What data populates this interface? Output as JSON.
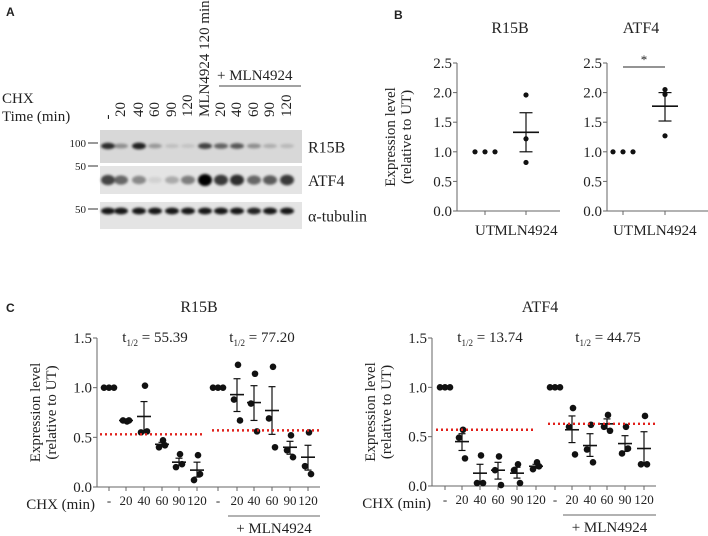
{
  "panel_letters": {
    "a": "A",
    "b": "B",
    "c": "C"
  },
  "panel_a": {
    "row_label_1": "CHX",
    "row_label_2": "Time (min)",
    "lanes": [
      "-",
      "20",
      "40",
      "60",
      "90",
      "120",
      "MLN4924 120 min",
      "20",
      "40",
      "60",
      "90",
      "120"
    ],
    "group_label": "+ MLN4924",
    "blots": [
      {
        "name": "R15B",
        "mw": "100",
        "intensity": [
          0.8,
          0.35,
          0.85,
          0.3,
          0.12,
          0.1,
          0.7,
          0.55,
          0.6,
          0.35,
          0.2,
          0.15
        ]
      },
      {
        "name": "ATF4",
        "mw": "50",
        "intensity": [
          0.7,
          0.55,
          0.4,
          0.08,
          0.25,
          0.45,
          1.0,
          0.75,
          0.8,
          0.55,
          0.6,
          0.75
        ]
      },
      {
        "name": "α-tubulin",
        "mw": "50",
        "intensity": [
          0.9,
          0.9,
          0.9,
          0.9,
          0.9,
          0.9,
          0.9,
          0.9,
          0.9,
          0.85,
          0.9,
          0.9
        ]
      }
    ]
  },
  "chart_data": [
    {
      "id": "B-R15B",
      "type": "scatter",
      "title": "R15B",
      "ylabel": "Expression level (relative to UT)",
      "ylim": [
        0,
        2.5
      ],
      "yticks": [
        "0.0",
        "0.5",
        "1.0",
        "1.5",
        "2.0",
        "2.5"
      ],
      "categories": [
        "UT",
        "MLN4924"
      ],
      "points": [
        [
          1,
          1,
          1
        ],
        [
          1.96,
          1.22,
          0.82
        ]
      ],
      "mean": [
        1.0,
        1.33
      ],
      "sem_low": [
        1.0,
        1.0
      ],
      "sem_high": [
        1.0,
        1.66
      ]
    },
    {
      "id": "B-ATF4",
      "type": "scatter",
      "title": "ATF4",
      "ylim": [
        0,
        2.5
      ],
      "yticks": [
        "0.0",
        "0.5",
        "1.0",
        "1.5",
        "2.0",
        "2.5"
      ],
      "categories": [
        "UT",
        "MLN4924"
      ],
      "points": [
        [
          1,
          1,
          1
        ],
        [
          2.05,
          1.97,
          1.27
        ]
      ],
      "mean": [
        1.0,
        1.77
      ],
      "sem_low": [
        1.0,
        1.52
      ],
      "sem_high": [
        1.0,
        2.0
      ],
      "significance": "*"
    },
    {
      "id": "C-R15B",
      "type": "scatter",
      "title": "R15B",
      "ylabel": "Expression level (relative to UT)",
      "ylim": [
        0,
        1.5
      ],
      "yticks": [
        "0.0",
        "0.5",
        "1.0",
        "1.5"
      ],
      "xlabel": "CHX (min)",
      "categories": [
        "-",
        "20",
        "40",
        "60",
        "90",
        "120",
        "-",
        "20",
        "40",
        "60",
        "90",
        "120"
      ],
      "group_label": "+ MLN4924",
      "half_life_labels": [
        {
          "t": "t",
          "sub": "1/2",
          "value": " = 55.39"
        },
        {
          "t": "t",
          "sub": "1/2",
          "value": " = 77.20"
        }
      ],
      "half_max_lines": [
        0.53,
        0.57
      ],
      "points": [
        [
          1,
          1,
          1
        ],
        [
          0.66,
          0.67,
          0.67
        ],
        [
          1.02,
          0.55,
          0.56
        ],
        [
          0.47,
          0.4,
          0.42
        ],
        [
          0.33,
          0.2,
          0.23
        ],
        [
          0.32,
          0.07,
          0.13
        ],
        [
          1,
          1,
          1
        ],
        [
          1.23,
          0.88,
          0.67
        ],
        [
          1.14,
          0.84,
          0.56
        ],
        [
          1.21,
          0.69,
          0.4
        ],
        [
          0.52,
          0.37,
          0.3
        ],
        [
          0.55,
          0.21,
          0.13
        ]
      ],
      "mean": [
        1,
        0.67,
        0.71,
        0.43,
        0.25,
        0.17,
        1,
        0.93,
        0.85,
        0.77,
        0.4,
        0.3
      ],
      "sem_low": [
        1,
        0.66,
        0.56,
        0.41,
        0.22,
        0.1,
        1,
        0.76,
        0.67,
        0.53,
        0.33,
        0.17
      ],
      "sem_high": [
        1,
        0.67,
        0.86,
        0.45,
        0.29,
        0.25,
        1,
        1.09,
        1.02,
        1.01,
        0.46,
        0.42
      ]
    },
    {
      "id": "C-ATF4",
      "type": "scatter",
      "title": "ATF4",
      "ylabel": "Expression level (relative to UT)",
      "ylim": [
        0,
        1.5
      ],
      "yticks": [
        "0.0",
        "0.5",
        "1.0",
        "1.5"
      ],
      "xlabel": "CHX (min)",
      "categories": [
        "-",
        "20",
        "40",
        "60",
        "90",
        "120",
        "-",
        "20",
        "40",
        "60",
        "90",
        "120"
      ],
      "group_label": "+ MLN4924",
      "half_life_labels": [
        {
          "t": "t",
          "sub": "1/2",
          "value": " = 13.74"
        },
        {
          "t": "t",
          "sub": "1/2",
          "value": " = 44.75"
        }
      ],
      "half_max_lines": [
        0.57,
        0.63
      ],
      "points": [
        [
          1,
          1,
          1
        ],
        [
          0.57,
          0.49,
          0.28
        ],
        [
          0.31,
          0.03,
          0.03
        ],
        [
          0.3,
          0.16,
          0.01
        ],
        [
          0.22,
          0.16,
          0.03
        ],
        [
          0.24,
          0.17,
          0.2
        ],
        [
          1,
          1,
          1
        ],
        [
          0.79,
          0.6,
          0.32
        ],
        [
          0.62,
          0.37,
          0.24
        ],
        [
          0.72,
          0.6,
          0.56
        ],
        [
          0.6,
          0.33,
          0.38
        ],
        [
          0.71,
          0.22,
          0.22
        ]
      ],
      "mean": [
        1,
        0.45,
        0.13,
        0.16,
        0.13,
        0.2,
        1,
        0.57,
        0.41,
        0.63,
        0.43,
        0.38
      ],
      "sem_low": [
        1,
        0.36,
        0.04,
        0.07,
        0.08,
        0.18,
        1,
        0.44,
        0.3,
        0.58,
        0.35,
        0.22
      ],
      "sem_high": [
        1,
        0.53,
        0.22,
        0.24,
        0.19,
        0.22,
        1,
        0.71,
        0.53,
        0.68,
        0.51,
        0.55
      ]
    }
  ],
  "colors": {
    "ink": "#111111",
    "axis": "#666666",
    "half_max_line": "#e0201b",
    "blot_bg": "#e4e4e4"
  }
}
